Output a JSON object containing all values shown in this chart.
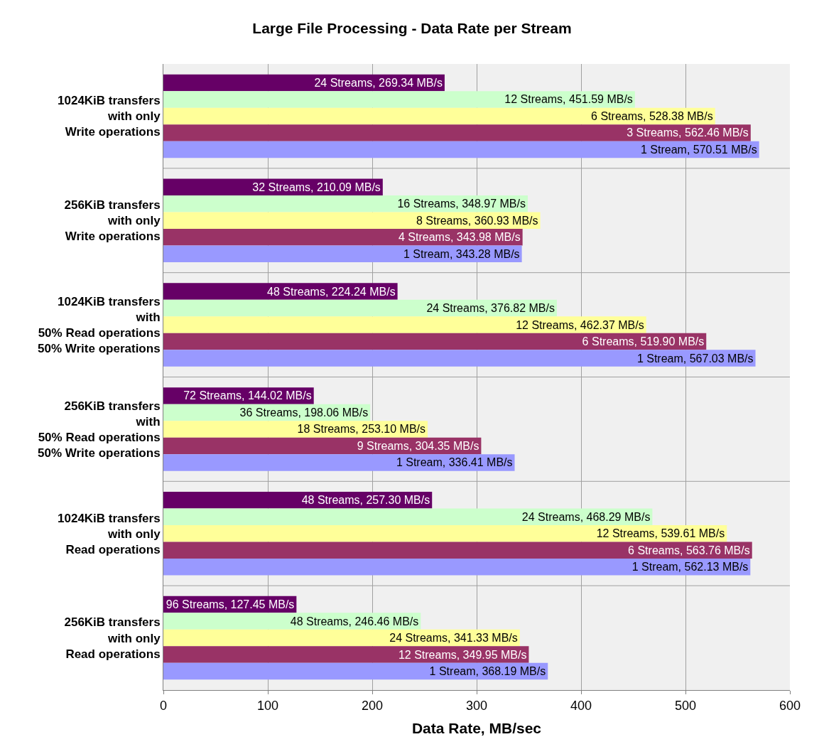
{
  "chart_data": {
    "type": "bar",
    "orientation": "horizontal",
    "title": "Large File Processing - Data Rate per Stream",
    "xlabel": "Data Rate, MB/sec",
    "categories": [
      "1024KiB transfers\nwith only\nWrite operations",
      "256KiB transfers\nwith only\nWrite operations",
      "1024KiB transfers\nwith\n50% Read operations\n50% Write operations",
      "256KiB transfers\nwith\n50% Read operations\n50% Write operations",
      "1024KiB transfers\nwith only\nRead operations",
      "256KiB transfers\nwith only\nRead operations"
    ],
    "series": [
      {
        "color": "#660066",
        "values": [
          269.34,
          210.09,
          224.24,
          144.02,
          257.3,
          127.45
        ],
        "value_labels": [
          "24 Streams, 269.34 MB/s",
          "32 Streams, 210.09 MB/s",
          "48 Streams, 224.24 MB/s",
          "72 Streams, 144.02 MB/s",
          "48 Streams, 257.30 MB/s",
          "96 Streams, 127.45 MB/s"
        ]
      },
      {
        "color": "#ccffcc",
        "values": [
          451.59,
          348.97,
          376.82,
          198.06,
          468.29,
          246.46
        ],
        "value_labels": [
          "12 Streams, 451.59 MB/s",
          "16 Streams, 348.97 MB/s",
          "24 Streams, 376.82 MB/s",
          "36 Streams, 198.06 MB/s",
          "24 Streams, 468.29 MB/s",
          "48 Streams, 246.46 MB/s"
        ]
      },
      {
        "color": "#ffff99",
        "values": [
          528.38,
          360.93,
          462.37,
          253.1,
          539.61,
          341.33
        ],
        "value_labels": [
          "6 Streams, 528.38 MB/s",
          "8 Streams, 360.93 MB/s",
          "12 Streams, 462.37 MB/s",
          "18 Streams, 253.10 MB/s",
          "12 Streams, 539.61 MB/s",
          "24 Streams, 341.33 MB/s"
        ]
      },
      {
        "color": "#993366",
        "values": [
          562.46,
          343.98,
          519.9,
          304.35,
          563.76,
          349.95
        ],
        "value_labels": [
          "3 Streams, 562.46 MB/s",
          "4 Streams, 343.98 MB/s",
          "6 Streams, 519.90 MB/s",
          "9 Streams, 304.35 MB/s",
          "6 Streams, 563.76 MB/s",
          "12 Streams, 349.95 MB/s"
        ]
      },
      {
        "color": "#9999ff",
        "values": [
          570.51,
          343.28,
          567.03,
          336.41,
          562.13,
          368.19
        ],
        "value_labels": [
          "1 Stream, 570.51 MB/s",
          "1 Stream, 343.28 MB/s",
          "1 Stream, 567.03 MB/s",
          "1 Stream, 336.41 MB/s",
          "1 Stream, 562.13 MB/s",
          "1 Stream, 368.19 MB/s"
        ]
      }
    ],
    "xlim": [
      0,
      600
    ],
    "xticks": [
      0,
      100,
      200,
      300,
      400,
      500,
      600
    ],
    "grid": true
  }
}
